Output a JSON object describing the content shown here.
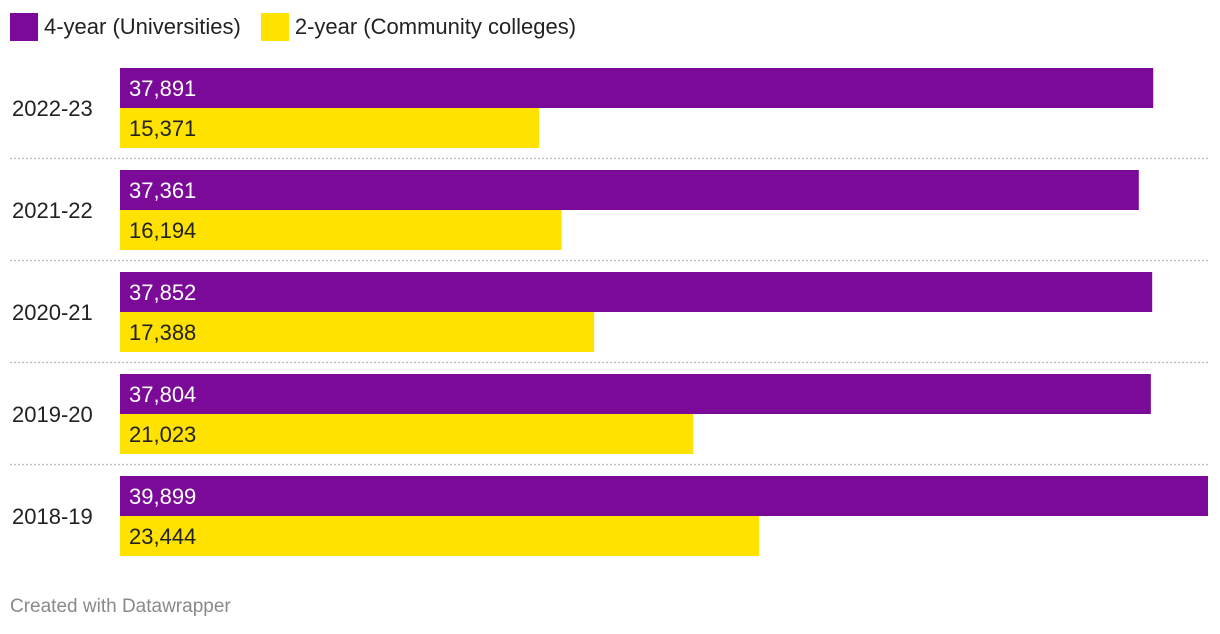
{
  "legend": [
    {
      "label": "4-year (Universities)",
      "color": "#7b0a98"
    },
    {
      "label": "2-year (Community colleges)",
      "color": "#ffe200"
    }
  ],
  "footer": "Created with Datawrapper",
  "chart_data": {
    "type": "bar",
    "orientation": "horizontal",
    "categories": [
      "2022-23",
      "2021-22",
      "2020-21",
      "2019-20",
      "2018-19"
    ],
    "series": [
      {
        "name": "4-year (Universities)",
        "color": "#7b0a98",
        "values": [
          37891,
          37361,
          37852,
          37804,
          39899
        ],
        "labels": [
          "37,891",
          "37,361",
          "37,852",
          "37,804",
          "39,899"
        ],
        "label_color": "#ffffff"
      },
      {
        "name": "2-year (Community colleges)",
        "color": "#ffe200",
        "values": [
          15371,
          16194,
          17388,
          21023,
          23444
        ],
        "labels": [
          "15,371",
          "16,194",
          "17,388",
          "21,023",
          "23,444"
        ],
        "label_color": "#222222"
      }
    ],
    "xlim": [
      0,
      39899
    ],
    "legend_position": "top-left",
    "grid": false,
    "separators": "dotted"
  }
}
